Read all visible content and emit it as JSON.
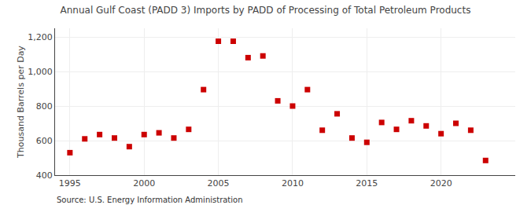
{
  "chart_data": {
    "type": "scatter",
    "title": "Annual Gulf Coast (PADD 3) Imports by PADD of Processing of Total Petroleum Products",
    "ylabel": "Thousand Barrels per Day",
    "annotations": [
      "Source: U.S. Energy Information Administration"
    ],
    "x": [
      1995,
      1996,
      1997,
      1998,
      1999,
      2000,
      2001,
      2002,
      2003,
      2004,
      2005,
      2006,
      2007,
      2008,
      2009,
      2010,
      2011,
      2012,
      2013,
      2014,
      2015,
      2016,
      2017,
      2018,
      2019,
      2020,
      2021,
      2022,
      2023
    ],
    "values": [
      530,
      610,
      635,
      615,
      565,
      635,
      645,
      615,
      665,
      895,
      1175,
      1175,
      1080,
      1090,
      830,
      800,
      895,
      660,
      755,
      615,
      590,
      705,
      665,
      715,
      685,
      640,
      700,
      660,
      485
    ],
    "color": "#cc0000",
    "marker": "square",
    "xlim": [
      1994,
      2025
    ],
    "xticks": [
      1995,
      2000,
      2005,
      2010,
      2015,
      2020
    ],
    "ylim": [
      400,
      1250
    ],
    "yticks": [
      400,
      600,
      800,
      {
        "value": 1000,
        "label": "1,000"
      },
      {
        "value": 1200,
        "label": "1,200"
      }
    ],
    "grid": true
  }
}
